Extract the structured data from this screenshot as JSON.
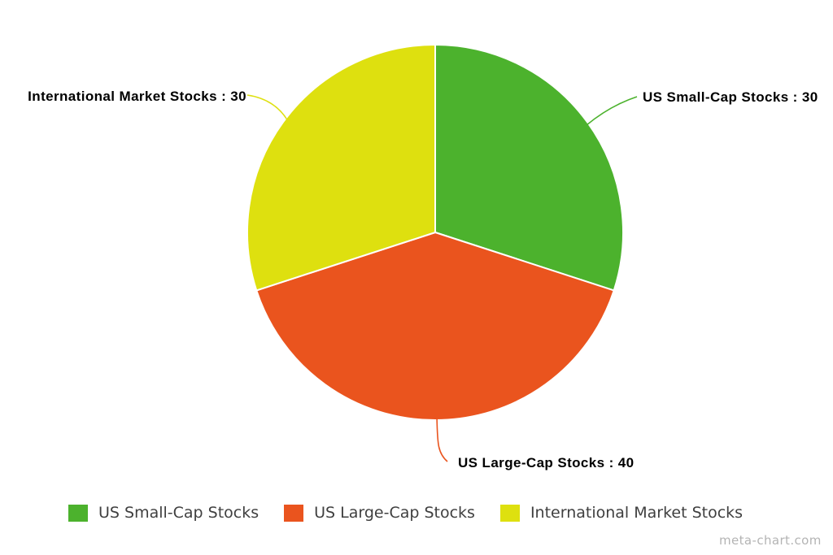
{
  "chart_data": {
    "type": "pie",
    "categories": [
      "US Small-Cap Stocks",
      "US Large-Cap Stocks",
      "International Market Stocks"
    ],
    "values": [
      30,
      40,
      30
    ],
    "colors": [
      "#4CB22D",
      "#EA541E",
      "#DEE00F"
    ],
    "start_angle": "12 o'clock",
    "direction": "clockwise",
    "slice_border_color": "#ffffff",
    "data_labels": [
      "US Small-Cap Stocks : 30",
      "US Large-Cap Stocks : 40",
      "International Market Stocks : 30"
    ],
    "legend_position": "bottom",
    "legend_entries": [
      "US Small-Cap Stocks",
      "US Large-Cap Stocks",
      "International Market Stocks"
    ]
  },
  "callout_labels": {
    "small_cap": "US Small-Cap Stocks : 30",
    "large_cap": "US Large-Cap Stocks : 40",
    "international": "International Market Stocks : 30"
  },
  "legend": {
    "items": [
      {
        "label": "US Small-Cap Stocks",
        "color": "#4CB22D"
      },
      {
        "label": "US Large-Cap Stocks",
        "color": "#EA541E"
      },
      {
        "label": "International Market Stocks",
        "color": "#DEE00F"
      }
    ]
  },
  "watermark": "meta-chart.com"
}
